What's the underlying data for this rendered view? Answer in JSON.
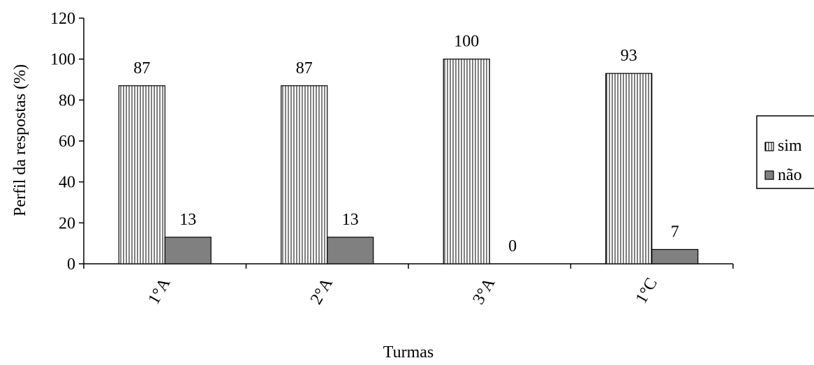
{
  "chart_data": {
    "type": "bar",
    "title": "",
    "xlabel": "Turmas",
    "ylabel": "Perfil da respostas (%)",
    "ylim": [
      0,
      120
    ],
    "yticks": [
      0,
      20,
      40,
      60,
      80,
      100,
      120
    ],
    "categories": [
      "1°A",
      "2°A",
      "3°A",
      "1°C"
    ],
    "series": [
      {
        "name": "sim",
        "values": [
          87,
          87,
          100,
          93
        ],
        "fill": "vertical-hatch",
        "color": "#ffffff"
      },
      {
        "name": "não",
        "values": [
          13,
          13,
          0,
          7
        ],
        "fill": "solid",
        "color": "#808080"
      }
    ],
    "data_labels": true,
    "grid": false,
    "legend_position": "right"
  }
}
